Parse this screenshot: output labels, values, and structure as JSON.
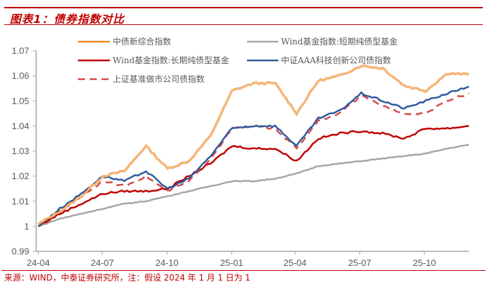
{
  "header": {
    "title": "图表1：债券指数对比"
  },
  "footer": {
    "source": "来源：WIND，中泰证券研究所，注：假设 2024 年 1 月 1 日为 1"
  },
  "colors": {
    "accent": "#c00000",
    "axis": "#a6a6a6",
    "tick_text": "#595959"
  },
  "chart_data": {
    "type": "line",
    "title": "债券指数对比",
    "xlabel": "",
    "ylabel": "",
    "ylim": [
      0.99,
      1.07
    ],
    "yticks": [
      "1.07",
      "1.06",
      "1.05",
      "1.04",
      "1.03",
      "1.02",
      "1.01",
      "1",
      "0.99"
    ],
    "xticks": [
      "24-04",
      "24-07",
      "24-10",
      "25-01",
      "25-04",
      "25-07",
      "25-10"
    ],
    "grid": false,
    "legend_position": "top",
    "x": [
      "24-04",
      "24-05",
      "24-06",
      "24-07",
      "24-08",
      "24-09",
      "24-10",
      "24-11",
      "24-12",
      "25-01",
      "25-02",
      "25-03",
      "25-04",
      "25-05",
      "25-06",
      "25-07",
      "25-08",
      "25-09",
      "25-10",
      "25-11",
      "25-12"
    ],
    "series": [
      {
        "name": "中债新综合指数",
        "color": "#f08a2c",
        "style": "double",
        "values": [
          1.0008,
          1.006,
          1.012,
          1.02,
          1.022,
          1.032,
          1.023,
          1.026,
          1.036,
          1.054,
          1.057,
          1.057,
          1.045,
          1.058,
          1.06,
          1.064,
          1.063,
          1.056,
          1.054,
          1.061,
          1.0605
        ]
      },
      {
        "name": "Wind基金指数:短期纯债型基金",
        "color": "#a6a6a6",
        "style": "solid",
        "values": [
          1.0,
          1.003,
          1.005,
          1.007,
          1.009,
          1.01,
          1.012,
          1.014,
          1.016,
          1.018,
          1.018,
          1.019,
          1.021,
          1.024,
          1.025,
          1.026,
          1.027,
          1.028,
          1.029,
          1.031,
          1.0325
        ]
      },
      {
        "name": "Wind基金指数:长期纯债型基金",
        "color": "#c00000",
        "style": "solid",
        "values": [
          1.0,
          1.005,
          1.009,
          1.013,
          1.014,
          1.014,
          1.015,
          1.02,
          1.025,
          1.032,
          1.031,
          1.031,
          1.026,
          1.035,
          1.037,
          1.038,
          1.037,
          1.035,
          1.039,
          1.039,
          1.04
        ]
      },
      {
        "name": "中证AAA科技创新公司债指数",
        "color": "#2e5a9e",
        "style": "solid",
        "values": [
          1.0,
          1.007,
          1.013,
          1.02,
          1.018,
          1.022,
          1.015,
          1.019,
          1.028,
          1.039,
          1.04,
          1.04,
          1.032,
          1.043,
          1.046,
          1.053,
          1.05,
          1.047,
          1.05,
          1.053,
          1.0557
        ]
      },
      {
        "name": "上证基准做市公司债指数",
        "color": "#d24a4a",
        "style": "dashed",
        "values": [
          1.0,
          1.006,
          1.012,
          1.018,
          1.016,
          1.02,
          1.014,
          1.018,
          1.027,
          1.039,
          1.04,
          1.039,
          1.031,
          1.042,
          1.045,
          1.052,
          1.048,
          1.045,
          1.045,
          1.05,
          1.053
        ]
      }
    ]
  },
  "legend": {
    "items": [
      {
        "label": "中债新综合指数"
      },
      {
        "label": "Wind基金指数:短期纯债型基金"
      },
      {
        "label": "Wind基金指数:长期纯债型基金"
      },
      {
        "label": "中证AAA科技创新公司债指数"
      },
      {
        "label": "上证基准做市公司债指数"
      }
    ]
  }
}
